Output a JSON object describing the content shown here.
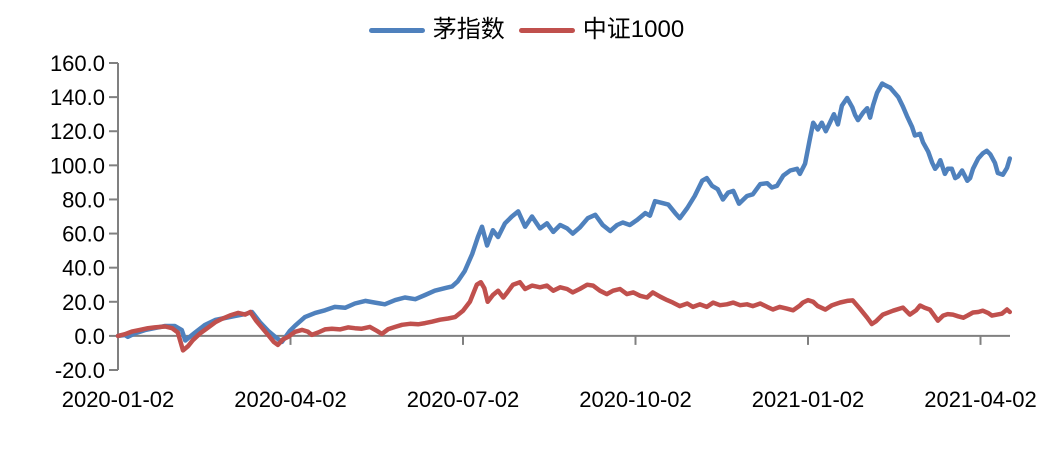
{
  "chart_data": {
    "type": "line",
    "title": "",
    "legend_position": "top-center",
    "background": "#FFFFFF",
    "axis_color": "#808080",
    "text_color": "#000000",
    "grid": "off",
    "x_axis": {
      "tick_labels": [
        "2020-01-02",
        "2020-04-02",
        "2020-07-02",
        "2020-10-02",
        "2021-01-02",
        "2021-04-02"
      ],
      "tick_positions_months": [
        0,
        3,
        6,
        9,
        12,
        15
      ],
      "range_months": [
        0,
        15.51
      ]
    },
    "y_axis": {
      "ticks": [
        -20,
        0,
        20,
        40,
        60,
        80,
        100,
        120,
        140,
        160
      ],
      "tick_label_format": "one-decimal",
      "range": [
        -20,
        160
      ]
    },
    "series": [
      {
        "name": "茅指数",
        "color": "#4F81BD",
        "points": [
          [
            0,
            0
          ],
          [
            0.12,
            0.5
          ],
          [
            0.17,
            -0.5
          ],
          [
            0.3,
            1.6
          ],
          [
            0.47,
            3.4
          ],
          [
            0.64,
            4.6
          ],
          [
            0.82,
            5.8
          ],
          [
            0.99,
            5.8
          ],
          [
            1.11,
            3.4
          ],
          [
            1.17,
            -2.7
          ],
          [
            1.34,
            2
          ],
          [
            1.51,
            6.4
          ],
          [
            1.69,
            9.3
          ],
          [
            1.86,
            10.5
          ],
          [
            2.03,
            11.6
          ],
          [
            2.21,
            12.8
          ],
          [
            2.33,
            14
          ],
          [
            2.47,
            8
          ],
          [
            2.61,
            3
          ],
          [
            2.75,
            -1
          ],
          [
            2.85,
            -3.5
          ],
          [
            2.99,
            3
          ],
          [
            3.08,
            6
          ],
          [
            3.25,
            11
          ],
          [
            3.43,
            13.5
          ],
          [
            3.6,
            15
          ],
          [
            3.77,
            17
          ],
          [
            3.95,
            16.5
          ],
          [
            4.12,
            19
          ],
          [
            4.3,
            20.5
          ],
          [
            4.47,
            19.5
          ],
          [
            4.64,
            18.5
          ],
          [
            4.82,
            21
          ],
          [
            4.99,
            22.5
          ],
          [
            5.17,
            21.5
          ],
          [
            5.34,
            24
          ],
          [
            5.51,
            26.5
          ],
          [
            5.69,
            28
          ],
          [
            5.81,
            29
          ],
          [
            5.91,
            32
          ],
          [
            6.03,
            38
          ],
          [
            6.16,
            48
          ],
          [
            6.26,
            58
          ],
          [
            6.33,
            64
          ],
          [
            6.42,
            53
          ],
          [
            6.52,
            62
          ],
          [
            6.61,
            58
          ],
          [
            6.73,
            66
          ],
          [
            6.85,
            70
          ],
          [
            6.96,
            73
          ],
          [
            7.08,
            64
          ],
          [
            7.2,
            70
          ],
          [
            7.34,
            63
          ],
          [
            7.46,
            66
          ],
          [
            7.57,
            61
          ],
          [
            7.69,
            65
          ],
          [
            7.81,
            63
          ],
          [
            7.91,
            60
          ],
          [
            8.03,
            63.5
          ],
          [
            8.17,
            69
          ],
          [
            8.3,
            71
          ],
          [
            8.43,
            65
          ],
          [
            8.56,
            61.5
          ],
          [
            8.68,
            65
          ],
          [
            8.78,
            66.5
          ],
          [
            8.9,
            65
          ],
          [
            9.03,
            68
          ],
          [
            9.17,
            72
          ],
          [
            9.25,
            70.5
          ],
          [
            9.34,
            79
          ],
          [
            9.46,
            78
          ],
          [
            9.57,
            77
          ],
          [
            9.69,
            72
          ],
          [
            9.77,
            69
          ],
          [
            9.9,
            75
          ],
          [
            10.03,
            82
          ],
          [
            10.16,
            91
          ],
          [
            10.24,
            92.5
          ],
          [
            10.33,
            88
          ],
          [
            10.43,
            86
          ],
          [
            10.52,
            80
          ],
          [
            10.61,
            84
          ],
          [
            10.7,
            85
          ],
          [
            10.8,
            77.5
          ],
          [
            10.94,
            82
          ],
          [
            11.04,
            83
          ],
          [
            11.17,
            89
          ],
          [
            11.29,
            89.5
          ],
          [
            11.37,
            87
          ],
          [
            11.46,
            88
          ],
          [
            11.57,
            94
          ],
          [
            11.69,
            97
          ],
          [
            11.81,
            98
          ],
          [
            11.86,
            95
          ],
          [
            11.95,
            101
          ],
          [
            12.03,
            115
          ],
          [
            12.09,
            125
          ],
          [
            12.17,
            121
          ],
          [
            12.24,
            125
          ],
          [
            12.31,
            120
          ],
          [
            12.38,
            125
          ],
          [
            12.45,
            130
          ],
          [
            12.52,
            124
          ],
          [
            12.59,
            135
          ],
          [
            12.68,
            139.5
          ],
          [
            12.77,
            134
          ],
          [
            12.82,
            129.5
          ],
          [
            12.87,
            126.5
          ],
          [
            12.96,
            131
          ],
          [
            13.03,
            133.5
          ],
          [
            13.08,
            128
          ],
          [
            13.13,
            135
          ],
          [
            13.2,
            142.5
          ],
          [
            13.29,
            148
          ],
          [
            13.34,
            147
          ],
          [
            13.43,
            145.5
          ],
          [
            13.48,
            143.5
          ],
          [
            13.57,
            140
          ],
          [
            13.65,
            134.5
          ],
          [
            13.72,
            129
          ],
          [
            13.81,
            122.5
          ],
          [
            13.86,
            117.5
          ],
          [
            13.95,
            118.5
          ],
          [
            14.0,
            113.5
          ],
          [
            14.09,
            108
          ],
          [
            14.16,
            101.5
          ],
          [
            14.21,
            98
          ],
          [
            14.26,
            100
          ],
          [
            14.3,
            103
          ],
          [
            14.38,
            95
          ],
          [
            14.43,
            98
          ],
          [
            14.5,
            98
          ],
          [
            14.56,
            92.5
          ],
          [
            14.61,
            93.5
          ],
          [
            14.68,
            97
          ],
          [
            14.77,
            91
          ],
          [
            14.82,
            92.5
          ],
          [
            14.87,
            98
          ],
          [
            14.96,
            104
          ],
          [
            15.04,
            107
          ],
          [
            15.11,
            108.5
          ],
          [
            15.17,
            106.5
          ],
          [
            15.25,
            101.5
          ],
          [
            15.3,
            95.5
          ],
          [
            15.39,
            94.5
          ],
          [
            15.46,
            98.5
          ],
          [
            15.51,
            104
          ]
        ]
      },
      {
        "name": "中证1000",
        "color": "#C0504D",
        "points": [
          [
            0,
            0
          ],
          [
            0.12,
            1
          ],
          [
            0.24,
            2.5
          ],
          [
            0.38,
            3.5
          ],
          [
            0.52,
            4.5
          ],
          [
            0.64,
            5
          ],
          [
            0.82,
            5.5
          ],
          [
            0.94,
            4.5
          ],
          [
            1.04,
            2
          ],
          [
            1.13,
            -8.5
          ],
          [
            1.22,
            -6
          ],
          [
            1.3,
            -2.5
          ],
          [
            1.43,
            1.5
          ],
          [
            1.57,
            5
          ],
          [
            1.69,
            8
          ],
          [
            1.81,
            10
          ],
          [
            1.95,
            12
          ],
          [
            2.09,
            13.5
          ],
          [
            2.21,
            12.5
          ],
          [
            2.3,
            14
          ],
          [
            2.4,
            9
          ],
          [
            2.5,
            5
          ],
          [
            2.61,
            0.5
          ],
          [
            2.71,
            -3.5
          ],
          [
            2.78,
            -5.3
          ],
          [
            2.87,
            -2
          ],
          [
            2.96,
            -0.5
          ],
          [
            3.08,
            2.4
          ],
          [
            3.2,
            3.5
          ],
          [
            3.3,
            2.5
          ],
          [
            3.37,
            0.6
          ],
          [
            3.48,
            2
          ],
          [
            3.6,
            3.8
          ],
          [
            3.72,
            4.2
          ],
          [
            3.86,
            3.8
          ],
          [
            4.0,
            5
          ],
          [
            4.12,
            4.5
          ],
          [
            4.24,
            4.2
          ],
          [
            4.38,
            5.3
          ],
          [
            4.5,
            3
          ],
          [
            4.59,
            1.2
          ],
          [
            4.7,
            4
          ],
          [
            4.82,
            5.3
          ],
          [
            4.94,
            6.5
          ],
          [
            5.08,
            7.1
          ],
          [
            5.22,
            6.8
          ],
          [
            5.34,
            7.5
          ],
          [
            5.46,
            8.3
          ],
          [
            5.6,
            9.5
          ],
          [
            5.74,
            10.2
          ],
          [
            5.86,
            11
          ],
          [
            6.0,
            14.8
          ],
          [
            6.12,
            20
          ],
          [
            6.24,
            30
          ],
          [
            6.31,
            31.5
          ],
          [
            6.37,
            28
          ],
          [
            6.43,
            20
          ],
          [
            6.52,
            24
          ],
          [
            6.61,
            26.5
          ],
          [
            6.7,
            22.5
          ],
          [
            6.78,
            26
          ],
          [
            6.87,
            30
          ],
          [
            6.99,
            31.5
          ],
          [
            7.08,
            27.5
          ],
          [
            7.2,
            29.5
          ],
          [
            7.34,
            28.5
          ],
          [
            7.46,
            29.5
          ],
          [
            7.57,
            26.5
          ],
          [
            7.69,
            28.5
          ],
          [
            7.81,
            27.5
          ],
          [
            7.91,
            25.5
          ],
          [
            8.03,
            27.5
          ],
          [
            8.16,
            30
          ],
          [
            8.26,
            29.5
          ],
          [
            8.38,
            26.5
          ],
          [
            8.5,
            24.5
          ],
          [
            8.61,
            26.5
          ],
          [
            8.73,
            27.5
          ],
          [
            8.85,
            24.5
          ],
          [
            8.96,
            25.5
          ],
          [
            9.08,
            23.5
          ],
          [
            9.2,
            22.5
          ],
          [
            9.3,
            25.5
          ],
          [
            9.43,
            23
          ],
          [
            9.55,
            21
          ],
          [
            9.65,
            19.5
          ],
          [
            9.77,
            17.5
          ],
          [
            9.9,
            19
          ],
          [
            10.0,
            17
          ],
          [
            10.12,
            18.5
          ],
          [
            10.24,
            17
          ],
          [
            10.35,
            19.5
          ],
          [
            10.47,
            18
          ],
          [
            10.59,
            18.5
          ],
          [
            10.7,
            19.5
          ],
          [
            10.82,
            18
          ],
          [
            10.94,
            18.5
          ],
          [
            11.04,
            17.5
          ],
          [
            11.17,
            19
          ],
          [
            11.29,
            17
          ],
          [
            11.39,
            15.5
          ],
          [
            11.51,
            17
          ],
          [
            11.63,
            16
          ],
          [
            11.74,
            15
          ],
          [
            11.86,
            17.8
          ],
          [
            11.91,
            19.5
          ],
          [
            12.0,
            21
          ],
          [
            12.09,
            20
          ],
          [
            12.17,
            17.5
          ],
          [
            12.3,
            15.4
          ],
          [
            12.42,
            18
          ],
          [
            12.56,
            19.6
          ],
          [
            12.68,
            20.5
          ],
          [
            12.78,
            20.8
          ],
          [
            12.9,
            16
          ],
          [
            13.03,
            10.7
          ],
          [
            13.11,
            7
          ],
          [
            13.18,
            8.5
          ],
          [
            13.3,
            12.5
          ],
          [
            13.48,
            14.8
          ],
          [
            13.65,
            16.6
          ],
          [
            13.77,
            12.5
          ],
          [
            13.88,
            15
          ],
          [
            13.95,
            17.8
          ],
          [
            14.03,
            16.5
          ],
          [
            14.12,
            15.4
          ],
          [
            14.26,
            8.9
          ],
          [
            14.35,
            11.9
          ],
          [
            14.43,
            12.8
          ],
          [
            14.52,
            12.5
          ],
          [
            14.61,
            11.5
          ],
          [
            14.7,
            10.7
          ],
          [
            14.78,
            12
          ],
          [
            14.87,
            13.7
          ],
          [
            14.96,
            14
          ],
          [
            15.04,
            14.8
          ],
          [
            15.13,
            13.5
          ],
          [
            15.2,
            11.9
          ],
          [
            15.29,
            12.5
          ],
          [
            15.37,
            13
          ],
          [
            15.46,
            15.5
          ],
          [
            15.51,
            14
          ]
        ]
      }
    ]
  }
}
